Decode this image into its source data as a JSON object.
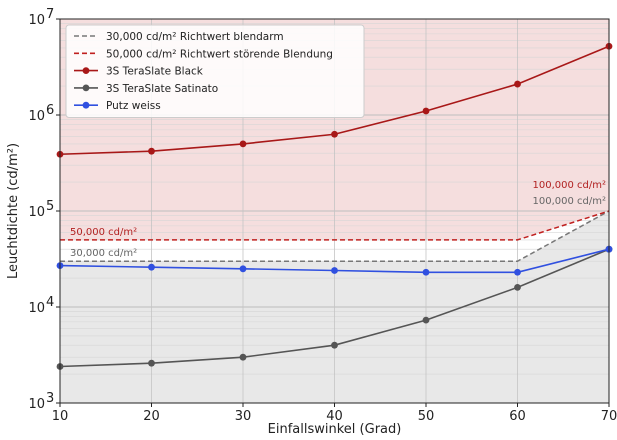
{
  "chart_data": {
    "type": "line",
    "xlabel": "Einfallswinkel (Grad)",
    "ylabel": "Leuchtdichte (cd/m²)",
    "yscale": "log",
    "xlim": [
      10,
      70
    ],
    "ylim": [
      1000,
      10000000
    ],
    "x_ticks": [
      "10",
      "20",
      "30",
      "40",
      "50",
      "60",
      "70"
    ],
    "y_ticks": [
      {
        "base": "10",
        "exp": "3"
      },
      {
        "base": "10",
        "exp": "4"
      },
      {
        "base": "10",
        "exp": "5"
      },
      {
        "base": "10",
        "exp": "6"
      },
      {
        "base": "10",
        "exp": "7"
      }
    ],
    "grid": true,
    "legend_position": "top-left",
    "shaded_regions": [
      {
        "from": [
          50000,
          50000,
          50000,
          50000,
          50000,
          50000,
          100000
        ],
        "to": 10000000,
        "color": "#f5dede"
      },
      {
        "from": 1000,
        "to": [
          30000,
          30000,
          30000,
          30000,
          30000,
          30000,
          100000
        ],
        "color": "#e8e8e8"
      }
    ],
    "x": [
      10,
      20,
      30,
      40,
      50,
      60,
      70
    ],
    "series": [
      {
        "name": "30,000 cd/m² Richtwert blendarm",
        "values": [
          30000,
          30000,
          30000,
          30000,
          30000,
          30000,
          100000
        ],
        "color": "#777777",
        "style": "dashed",
        "marker": false
      },
      {
        "name": "50,000 cd/m² Richtwert störende Blendung",
        "values": [
          50000,
          50000,
          50000,
          50000,
          50000,
          50000,
          100000
        ],
        "color": "#c0201f",
        "style": "dashed",
        "marker": false
      },
      {
        "name": "3S TeraSlate Black",
        "values": [
          390000,
          420000,
          500000,
          630000,
          1100000,
          2100000,
          5200000
        ],
        "color": "#a81818",
        "style": "solid",
        "marker": true
      },
      {
        "name": "3S TeraSlate Satinato",
        "values": [
          2400,
          2600,
          3000,
          4000,
          7300,
          16000,
          40000
        ],
        "color": "#555555",
        "style": "solid",
        "marker": true
      },
      {
        "name": "Putz weiss",
        "values": [
          27000,
          26000,
          25000,
          24000,
          23000,
          23000,
          40000
        ],
        "color": "#3050e0",
        "style": "solid",
        "marker": true
      }
    ],
    "annotations": [
      {
        "text": "50,000 cd/m²",
        "x": 10,
        "y": 50000,
        "color": "#b22222",
        "anchor": "start"
      },
      {
        "text": "30,000 cd/m²",
        "x": 10,
        "y": 30000,
        "color": "#666666",
        "anchor": "start"
      },
      {
        "text": "100,000 cd/m²",
        "x": 70,
        "y": 100000,
        "color": "#b22222",
        "anchor": "end",
        "line": 1
      },
      {
        "text": "100,000 cd/m²",
        "x": 70,
        "y": 100000,
        "color": "#666666",
        "anchor": "end",
        "line": 2
      }
    ]
  }
}
